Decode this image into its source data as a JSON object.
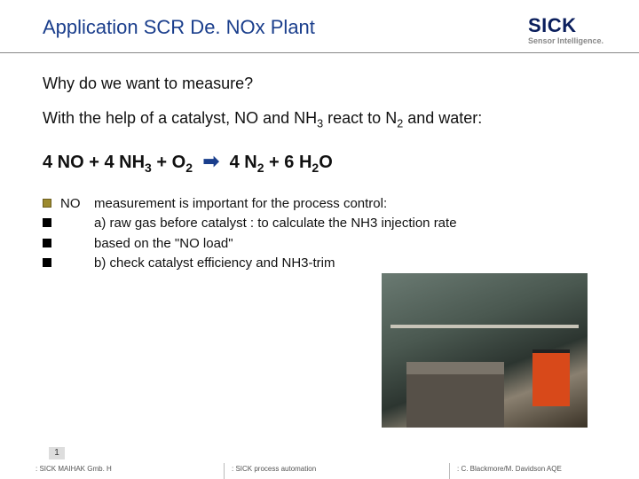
{
  "header": {
    "title": "Application SCR De. NOx Plant",
    "logo_main": "SICK",
    "logo_sub": "Sensor Intelligence."
  },
  "content": {
    "subheading": "Why do we want to measure?",
    "desc_pre": "With the help of a catalyst, NO and NH",
    "desc_sub1": "3",
    "desc_mid": " react to N",
    "desc_sub2": "2",
    "desc_post": " and water:",
    "equation": {
      "t1": "4 NO  +  4 NH",
      "s1": "3",
      "t2": "  +  O",
      "s2": "2",
      "t3": "4 N",
      "s3": "2",
      "t4": "   +   6 H",
      "s4": "2",
      "t5": "O"
    },
    "bullets": [
      {
        "label": "NO",
        "text": "measurement is important for the process control:"
      },
      {
        "label": "",
        "text": "a) raw gas before catalyst : to calculate the NH3 injection rate"
      },
      {
        "label": "",
        "text": "    based on the \"NO load\""
      },
      {
        "label": "",
        "text": "b) check catalyst efficiency and NH3-trim"
      }
    ]
  },
  "footer": {
    "page": "1",
    "left": ": SICK MAIHAK Gmb. H",
    "center": ": SICK  process automation",
    "right": ": C. Blackmore/M. Davidson AQE"
  },
  "colors": {
    "title": "#1a3e8c",
    "logo": "#0a1e5c",
    "arrow": "#1a3e8c",
    "first_bullet": "#9c8a2e"
  }
}
